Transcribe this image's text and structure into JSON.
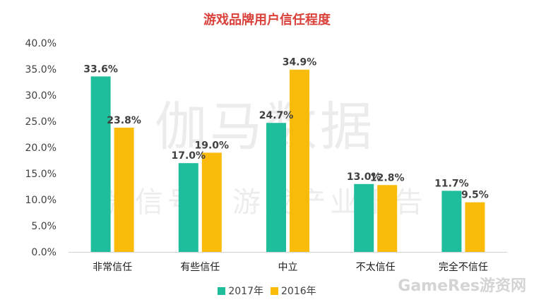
{
  "chart_data": {
    "type": "bar",
    "title": "游戏品牌用户信任程度",
    "categories": [
      "非常信任",
      "有些信任",
      "中立",
      "不太信任",
      "完全不信任"
    ],
    "series": [
      {
        "name": "2017年",
        "values": [
          33.6,
          17.0,
          24.7,
          13.0,
          11.7
        ],
        "labels": [
          "33.6%",
          "17.0%",
          "24.7%",
          "13.0%",
          "11.7%"
        ],
        "color": "#1ebd9b"
      },
      {
        "name": "2016年",
        "values": [
          23.8,
          19.0,
          34.9,
          12.8,
          9.5
        ],
        "labels": [
          "23.8%",
          "19.0%",
          "34.9%",
          "12.8%",
          "9.5%"
        ],
        "color": "#fbbb0a"
      }
    ],
    "y_ticks": [
      "0.0%",
      "5.0%",
      "10.0%",
      "15.0%",
      "20.0%",
      "25.0%",
      "30.0%",
      "35.0%",
      "40.0%"
    ],
    "ylim": [
      0,
      40
    ],
    "grid": false,
    "legend_position": "bottom"
  },
  "watermark": {
    "main": "伽马数据",
    "sub": "微信号：游戏产业报告",
    "corner": "GameRes游资网"
  }
}
